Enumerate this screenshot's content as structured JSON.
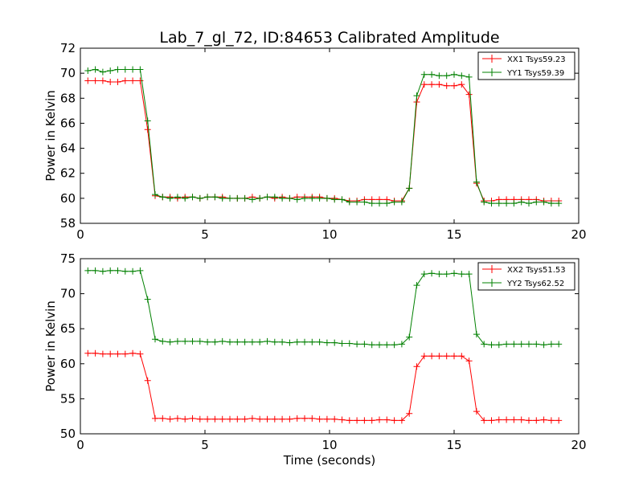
{
  "figure": {
    "title": "Lab_7_gl_72, ID:84653 Calibrated Amplitude",
    "xlabel": "Time (seconds)"
  },
  "chart_data": [
    {
      "type": "line",
      "ylabel": "Power in Kelvin",
      "xlim": [
        0,
        20
      ],
      "ylim": [
        58,
        72
      ],
      "xticks": [
        0,
        5,
        10,
        15,
        20
      ],
      "yticks": [
        58,
        60,
        62,
        64,
        66,
        68,
        70,
        72
      ],
      "grid": false,
      "legend_position": "top-right",
      "x": [
        0.3,
        0.6,
        0.9,
        1.2,
        1.5,
        1.8,
        2.1,
        2.4,
        2.7,
        3.0,
        3.3,
        3.6,
        3.9,
        4.2,
        4.5,
        4.8,
        5.1,
        5.4,
        5.7,
        6.0,
        6.3,
        6.6,
        6.9,
        7.2,
        7.5,
        7.8,
        8.1,
        8.4,
        8.7,
        9.0,
        9.3,
        9.6,
        9.9,
        10.2,
        10.5,
        10.8,
        11.1,
        11.4,
        11.7,
        12.0,
        12.3,
        12.6,
        12.9,
        13.2,
        13.5,
        13.8,
        14.1,
        14.4,
        14.7,
        15.0,
        15.3,
        15.6,
        15.9,
        16.2,
        16.5,
        16.8,
        17.1,
        17.4,
        17.7,
        18.0,
        18.3,
        18.6,
        18.9,
        19.2
      ],
      "series": [
        {
          "name": "XX1 Tsys59.23",
          "color": "#ff0000",
          "values": [
            69.4,
            69.4,
            69.4,
            69.3,
            69.3,
            69.4,
            69.4,
            69.4,
            65.5,
            60.2,
            60.1,
            60.1,
            60.0,
            60.1,
            60.1,
            60.0,
            60.1,
            60.1,
            60.1,
            60.0,
            60.0,
            60.0,
            60.1,
            60.0,
            60.1,
            60.0,
            60.1,
            60.0,
            60.1,
            60.1,
            60.1,
            60.1,
            60.0,
            60.0,
            59.9,
            59.8,
            59.8,
            59.9,
            59.9,
            59.9,
            59.9,
            59.8,
            59.8,
            60.8,
            67.7,
            69.1,
            69.1,
            69.1,
            69.0,
            69.0,
            69.1,
            68.3,
            61.2,
            59.8,
            59.8,
            59.9,
            59.9,
            59.9,
            59.9,
            59.9,
            59.9,
            59.8,
            59.8,
            59.8
          ]
        },
        {
          "name": "YY1 Tsys59.39",
          "color": "#008000",
          "values": [
            70.2,
            70.3,
            70.1,
            70.2,
            70.3,
            70.3,
            70.3,
            70.3,
            66.2,
            60.3,
            60.1,
            60.0,
            60.1,
            60.0,
            60.1,
            60.0,
            60.1,
            60.1,
            60.0,
            60.0,
            60.0,
            60.0,
            59.9,
            60.0,
            60.1,
            60.1,
            60.0,
            60.0,
            59.9,
            60.0,
            60.0,
            60.0,
            60.0,
            59.9,
            59.9,
            59.7,
            59.7,
            59.7,
            59.6,
            59.6,
            59.6,
            59.7,
            59.7,
            60.8,
            68.2,
            69.9,
            69.9,
            69.8,
            69.8,
            69.9,
            69.8,
            69.7,
            61.3,
            59.7,
            59.6,
            59.6,
            59.6,
            59.6,
            59.7,
            59.6,
            59.7,
            59.7,
            59.6,
            59.6
          ]
        }
      ]
    },
    {
      "type": "line",
      "ylabel": "Power in Kelvin",
      "xlabel": "Time (seconds)",
      "xlim": [
        0,
        20
      ],
      "ylim": [
        50,
        75
      ],
      "xticks": [
        0,
        5,
        10,
        15,
        20
      ],
      "yticks": [
        50,
        55,
        60,
        65,
        70,
        75
      ],
      "grid": false,
      "legend_position": "top-right",
      "x": [
        0.3,
        0.6,
        0.9,
        1.2,
        1.5,
        1.8,
        2.1,
        2.4,
        2.7,
        3.0,
        3.3,
        3.6,
        3.9,
        4.2,
        4.5,
        4.8,
        5.1,
        5.4,
        5.7,
        6.0,
        6.3,
        6.6,
        6.9,
        7.2,
        7.5,
        7.8,
        8.1,
        8.4,
        8.7,
        9.0,
        9.3,
        9.6,
        9.9,
        10.2,
        10.5,
        10.8,
        11.1,
        11.4,
        11.7,
        12.0,
        12.3,
        12.6,
        12.9,
        13.2,
        13.5,
        13.8,
        14.1,
        14.4,
        14.7,
        15.0,
        15.3,
        15.6,
        15.9,
        16.2,
        16.5,
        16.8,
        17.1,
        17.4,
        17.7,
        18.0,
        18.3,
        18.6,
        18.9,
        19.2
      ],
      "series": [
        {
          "name": "XX2 Tsys51.53",
          "color": "#ff0000",
          "values": [
            61.5,
            61.5,
            61.4,
            61.4,
            61.4,
            61.4,
            61.5,
            61.4,
            57.6,
            52.2,
            52.2,
            52.1,
            52.2,
            52.1,
            52.2,
            52.1,
            52.1,
            52.1,
            52.1,
            52.1,
            52.1,
            52.1,
            52.2,
            52.1,
            52.1,
            52.1,
            52.1,
            52.1,
            52.2,
            52.2,
            52.2,
            52.1,
            52.1,
            52.1,
            52.0,
            51.9,
            51.9,
            51.9,
            51.9,
            52.0,
            52.0,
            51.9,
            51.9,
            52.9,
            59.6,
            61.1,
            61.1,
            61.1,
            61.1,
            61.1,
            61.1,
            60.4,
            53.2,
            51.9,
            51.9,
            52.0,
            52.0,
            52.0,
            52.0,
            51.9,
            51.9,
            52.0,
            51.9,
            51.9
          ]
        },
        {
          "name": "YY2 Tsys62.52",
          "color": "#008000",
          "values": [
            73.3,
            73.3,
            73.2,
            73.3,
            73.3,
            73.2,
            73.2,
            73.3,
            69.2,
            63.5,
            63.2,
            63.1,
            63.2,
            63.2,
            63.2,
            63.2,
            63.1,
            63.1,
            63.2,
            63.1,
            63.1,
            63.1,
            63.1,
            63.1,
            63.2,
            63.1,
            63.1,
            63.0,
            63.1,
            63.1,
            63.1,
            63.1,
            63.0,
            63.0,
            62.9,
            62.9,
            62.8,
            62.8,
            62.7,
            62.7,
            62.7,
            62.7,
            62.8,
            63.8,
            71.2,
            72.8,
            72.9,
            72.8,
            72.8,
            72.9,
            72.8,
            72.8,
            64.2,
            62.8,
            62.7,
            62.7,
            62.8,
            62.8,
            62.8,
            62.8,
            62.8,
            62.7,
            62.8,
            62.8
          ]
        }
      ]
    }
  ]
}
